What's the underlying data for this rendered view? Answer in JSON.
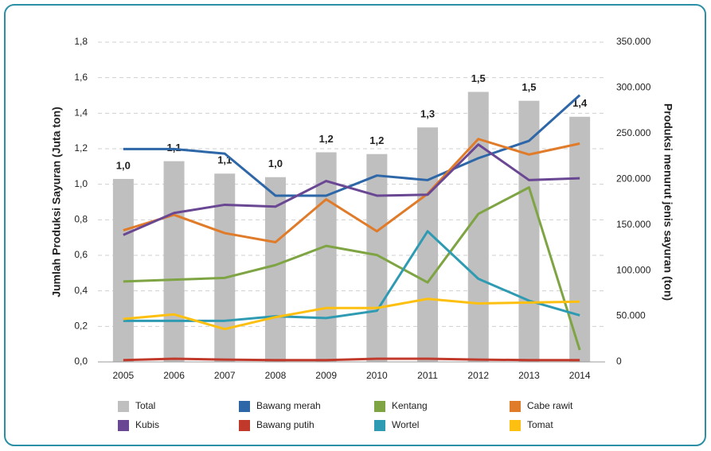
{
  "chart_data": {
    "type": "bar-line",
    "y_title": "Jumlah Produksi Sayuran (Juta ton)",
    "y2_title": "Produksi menurut jenis sayuran (ton)",
    "categories": [
      "2005",
      "2006",
      "2007",
      "2008",
      "2009",
      "2010",
      "2011",
      "2012",
      "2013",
      "2014"
    ],
    "ylim": [
      0,
      1.8
    ],
    "yticks": [
      {
        "value": 0,
        "label": "0,0"
      },
      {
        "value": 0.2,
        "label": "0,2"
      },
      {
        "value": 0.4,
        "label": "0,4"
      },
      {
        "value": 0.6,
        "label": "0,6"
      },
      {
        "value": 0.8,
        "label": "0,8"
      },
      {
        "value": 1.0,
        "label": "1,0"
      },
      {
        "value": 1.2,
        "label": "1,2"
      },
      {
        "value": 1.4,
        "label": "1,4"
      },
      {
        "value": 1.6,
        "label": "1,6"
      },
      {
        "value": 1.8,
        "label": "1,8"
      }
    ],
    "y2lim": [
      0,
      350000
    ],
    "y2ticks": [
      0,
      {
        "value": 50000,
        "label": "50.000"
      },
      {
        "value": 100000,
        "label": "100.000"
      },
      {
        "value": 150000,
        "label": "150.000"
      },
      {
        "value": 200000,
        "label": "200.000"
      },
      {
        "value": 250000,
        "label": "250.000"
      },
      {
        "value": 300000,
        "label": "300.000"
      },
      {
        "value": 350000,
        "label": "350.000"
      }
    ],
    "grid": true,
    "legend": "bottom",
    "series": [
      {
        "name": "Total",
        "mark": "bar",
        "color": "#bfbfbf",
        "values": [
          1.03,
          1.13,
          1.06,
          1.04,
          1.18,
          1.17,
          1.32,
          1.52,
          1.47,
          1.38
        ],
        "value_labels": [
          "1,0",
          "1,1",
          "1,1",
          "1,0",
          "1,2",
          "1,2",
          "1,3",
          "1,5",
          "1,5",
          "1,4"
        ]
      },
      {
        "name": "Bawang merah",
        "mark": "line",
        "axis": "y2",
        "color": "#2e67a8",
        "values": [
          233000,
          233000,
          228000,
          182000,
          182000,
          204000,
          199000,
          223000,
          242000,
          292000
        ]
      },
      {
        "name": "Kentang",
        "mark": "line",
        "axis": "y2",
        "color": "#7ea443",
        "values": [
          88000,
          90000,
          92000,
          106000,
          127000,
          117000,
          87000,
          162000,
          191000,
          13000
        ]
      },
      {
        "name": "Cabe rawit",
        "mark": "line",
        "axis": "y2",
        "color": "#e07b2a",
        "values": [
          144000,
          161000,
          141000,
          131000,
          178000,
          143000,
          184000,
          244000,
          227000,
          239000
        ]
      },
      {
        "name": "Kubis",
        "mark": "line",
        "axis": "y2",
        "color": "#6a4793",
        "values": [
          139000,
          163000,
          172000,
          170000,
          198000,
          182000,
          183000,
          238000,
          199000,
          201000
        ]
      },
      {
        "name": "Bawang putih",
        "mark": "line",
        "axis": "y2",
        "color": "#c0392b",
        "values": [
          2000,
          3500,
          2500,
          2000,
          2000,
          3500,
          3500,
          2500,
          2000,
          2000
        ]
      },
      {
        "name": "Wortel",
        "mark": "line",
        "axis": "y2",
        "color": "#2f9bb3",
        "values": [
          45000,
          45000,
          45000,
          50000,
          48000,
          56000,
          143000,
          91000,
          67000,
          51000
        ]
      },
      {
        "name": "Tomat",
        "mark": "line",
        "axis": "y2",
        "color": "#fdc010",
        "values": [
          47000,
          52000,
          36000,
          49000,
          59000,
          59000,
          69000,
          64000,
          65000,
          66000
        ]
      }
    ]
  }
}
